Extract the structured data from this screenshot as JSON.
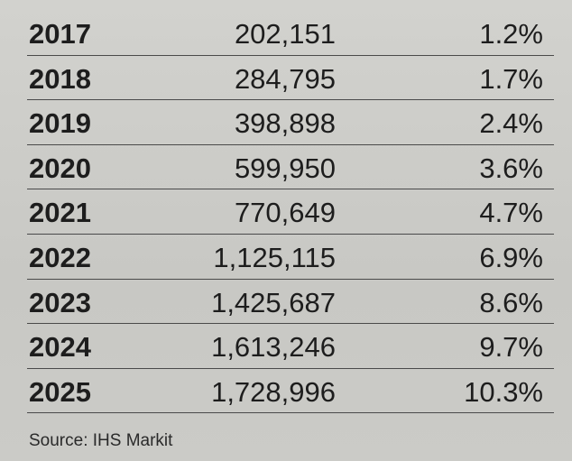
{
  "table": {
    "rows": [
      [
        "2017",
        "202,151",
        "1.2%"
      ],
      [
        "2018",
        "284,795",
        "1.7%"
      ],
      [
        "2019",
        "398,898",
        "2.4%"
      ],
      [
        "2020",
        "599,950",
        "3.6%"
      ],
      [
        "2021",
        "770,649",
        "4.7%"
      ],
      [
        "2022",
        "1,125,115",
        "6.9%"
      ],
      [
        "2023",
        "1,425,687",
        "8.6%"
      ],
      [
        "2024",
        "1,613,246",
        "9.7%"
      ],
      [
        "2025",
        "1,728,996",
        "10.3%"
      ]
    ]
  },
  "footer": {
    "source": "Source: IHS Markit"
  }
}
